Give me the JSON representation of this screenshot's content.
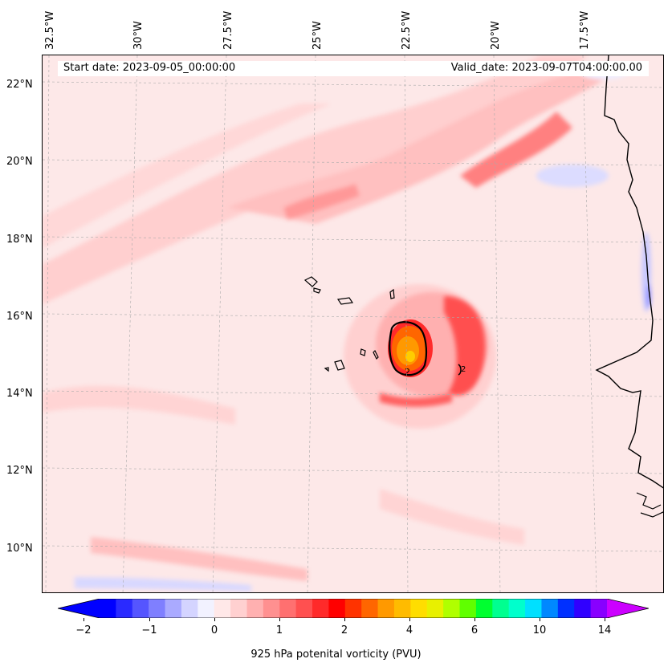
{
  "header": {
    "start_date": "Start date: 2023-09-05_00:00:00",
    "valid_date": "Valid_date: 2023-09-07T04:00:00.00"
  },
  "axes": {
    "lon_labels": [
      "32.5°W",
      "30°W",
      "27.5°W",
      "25°W",
      "22.5°W",
      "20°W",
      "17.5°W"
    ],
    "lat_labels": [
      "22°N",
      "20°N",
      "18°N",
      "16°N",
      "14°N",
      "12°N",
      "10°N"
    ]
  },
  "contour_label": "2",
  "colorbar": {
    "label": "925 hPa potenital vorticity (PVU)",
    "ticks": [
      "−2",
      "−1",
      "0",
      "1",
      "2",
      "4",
      "6",
      "10",
      "14"
    ],
    "colors": [
      "#0000ff",
      "#2a2aff",
      "#5555ff",
      "#7f7fff",
      "#aaaaff",
      "#d4d4ff",
      "#f2f2ff",
      "#ffe8e8",
      "#ffd0d0",
      "#ffb0b0",
      "#ff9090",
      "#ff7070",
      "#ff5050",
      "#ff2a2a",
      "#ff0000",
      "#ff3300",
      "#ff6600",
      "#ff9900",
      "#ffbb00",
      "#ffdd00",
      "#e8f000",
      "#b0ff00",
      "#60ff00",
      "#00ff30",
      "#00ff90",
      "#00ffcc",
      "#00e0ff",
      "#0088ff",
      "#0030ff",
      "#3000ff",
      "#8800ff"
    ],
    "extend_min_color": "#0000ff",
    "extend_max_color": "#cc00ff"
  }
}
